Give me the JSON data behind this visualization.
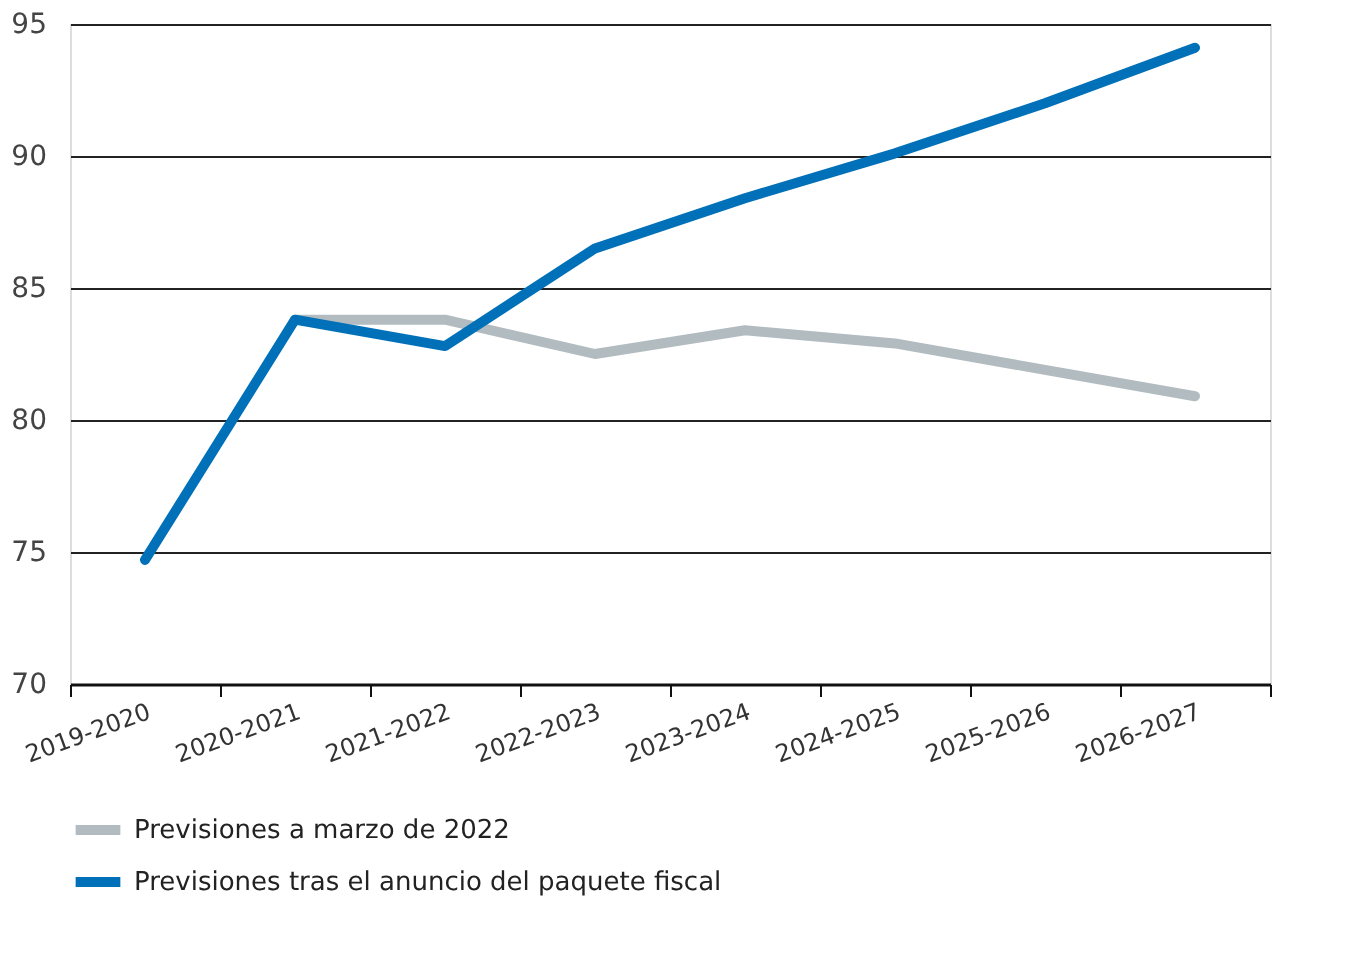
{
  "chart_data": {
    "type": "line",
    "categories": [
      "2019-2020",
      "2020-2021",
      "2021-2022",
      "2022-2023",
      "2023-2024",
      "2024-2025",
      "2025-2026",
      "2026-2027"
    ],
    "series": [
      {
        "name": "Previsiones a marzo de 2022",
        "color": "#b2bcc0",
        "values": [
          null,
          83.8,
          83.8,
          82.5,
          83.4,
          82.9,
          81.9,
          80.9
        ]
      },
      {
        "name": "Previsiones tras el anuncio del paquete fiscal",
        "color": "#0070b8",
        "values": [
          74.7,
          83.8,
          82.8,
          86.5,
          88.4,
          90.1,
          92.0,
          94.1
        ]
      }
    ],
    "ylim": [
      70,
      95
    ],
    "yticks": [
      70,
      75,
      80,
      85,
      90,
      95
    ],
    "grid": "y",
    "legend": "bottom",
    "marker": "none",
    "line_style": "solid"
  }
}
